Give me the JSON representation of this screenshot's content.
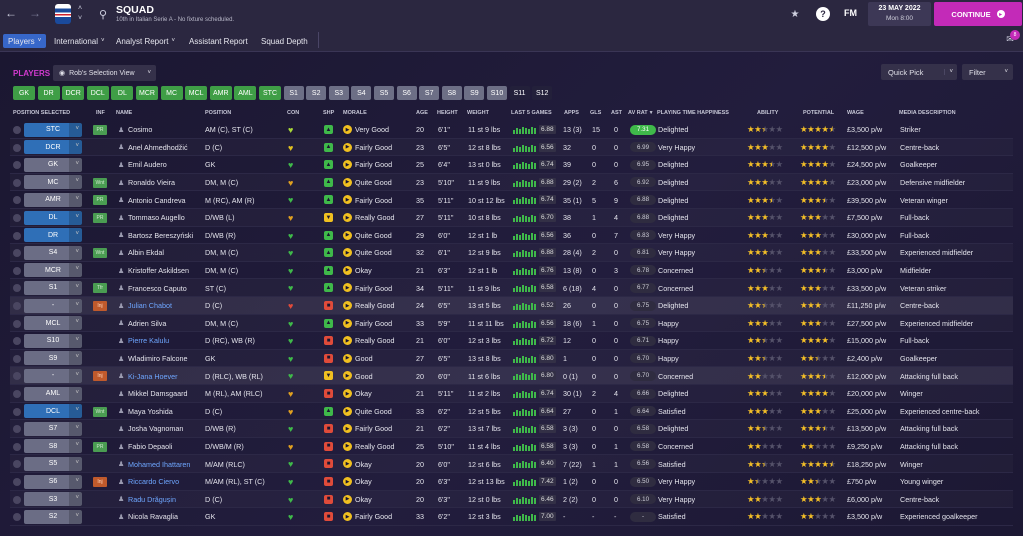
{
  "topbar": {
    "title": "SQUAD",
    "subtitle": "10th in Italian Serie A - No fixture scheduled.",
    "date": "23 MAY 2022",
    "time": "Mon 8:00",
    "fm_label": "FM",
    "continue_label": "CONTINUE",
    "notification_count": "8"
  },
  "nav": {
    "tabs": [
      {
        "label": "Players"
      },
      {
        "label": "International"
      },
      {
        "label": "Analyst Report"
      },
      {
        "label": "Assistant Report"
      },
      {
        "label": "Squad Depth"
      }
    ]
  },
  "toolbar": {
    "section_label": "PLAYERS",
    "view_label": "Rob's Selection View",
    "quick_pick_label": "Quick Pick",
    "filter_label": "Filter",
    "position_filters": [
      "GK",
      "DR",
      "DCR",
      "DCL",
      "DL",
      "MCR",
      "MC",
      "MCL",
      "AMR",
      "AML",
      "STC",
      "S1",
      "S2",
      "S3",
      "S4",
      "S5",
      "S6",
      "S7",
      "S8",
      "S9",
      "S10",
      "S11",
      "S12"
    ]
  },
  "columns": [
    "POSITION SELECTED",
    "INF",
    "NAME",
    "POSITION",
    "CON",
    "SHP",
    "MORALE",
    "AGE",
    "HEIGHT",
    "WEIGHT",
    "LAST 5 GAMES",
    "APPS",
    "GLS",
    "AST",
    "AV RAT",
    "PLAYING TIME HAPPINESS",
    "ABILITY",
    "POTENTIAL",
    "WAGE",
    "MEDIA DESCRIPTION"
  ],
  "players": [
    {
      "sel": "STC",
      "blue": true,
      "inf": "PR",
      "name": "Cosimo",
      "pos": "AM (C), ST (C)",
      "morale": "Very Good",
      "age": "20",
      "height": "6'1\"",
      "weight": "11 st 9 lbs",
      "last5": "6.88",
      "apps": "13 (3)",
      "gls": "15",
      "ast": "0",
      "avrat": "7.31",
      "happy": "Delighted",
      "ability": 2.5,
      "potential": 4.5,
      "wage": "£3,500 p/w",
      "media": "Striker"
    },
    {
      "sel": "DCR",
      "blue": true,
      "inf": "",
      "name": "Anel Ahmedhodžić",
      "pos": "D (C)",
      "morale": "Fairly Good",
      "age": "23",
      "height": "6'5\"",
      "weight": "12 st 8 lbs",
      "last5": "6.56",
      "apps": "32",
      "gls": "0",
      "ast": "0",
      "avrat": "6.99",
      "happy": "Very Happy",
      "ability": 3,
      "potential": 4,
      "wage": "£12,500 p/w",
      "media": "Centre-back"
    },
    {
      "sel": "GK",
      "blue": false,
      "inf": "",
      "name": "Emil Audero",
      "pos": "GK",
      "morale": "Fairly Good",
      "age": "25",
      "height": "6'4\"",
      "weight": "13 st 0 lbs",
      "last5": "6.74",
      "apps": "39",
      "gls": "0",
      "ast": "0",
      "avrat": "6.95",
      "happy": "Delighted",
      "ability": 3.5,
      "potential": 4,
      "wage": "£24,500 p/w",
      "media": "Goalkeeper"
    },
    {
      "sel": "MC",
      "blue": false,
      "inf": "Wnt",
      "name": "Ronaldo Vieira",
      "pos": "DM, M (C)",
      "morale": "Quite Good",
      "age": "23",
      "height": "5'10\"",
      "weight": "11 st 9 lbs",
      "last5": "6.88",
      "apps": "29 (2)",
      "gls": "2",
      "ast": "6",
      "avrat": "6.92",
      "happy": "Delighted",
      "ability": 3,
      "potential": 4,
      "wage": "£23,000 p/w",
      "media": "Defensive midfielder"
    },
    {
      "sel": "AMR",
      "blue": false,
      "inf": "PR",
      "name": "Antonio Candreva",
      "pos": "M (RC), AM (R)",
      "morale": "Fairly Good",
      "age": "35",
      "height": "5'11\"",
      "weight": "10 st 12 lbs",
      "last5": "6.74",
      "apps": "35 (1)",
      "gls": "5",
      "ast": "9",
      "avrat": "6.88",
      "happy": "Delighted",
      "ability": 3.5,
      "potential": 3.5,
      "wage": "£39,500 p/w",
      "media": "Veteran winger"
    },
    {
      "sel": "DL",
      "blue": true,
      "inf": "PR",
      "name": "Tommaso Augello",
      "pos": "D/WB (L)",
      "morale": "Really Good",
      "age": "27",
      "height": "5'11\"",
      "weight": "10 st 8 lbs",
      "last5": "6.70",
      "apps": "38",
      "gls": "1",
      "ast": "4",
      "avrat": "6.88",
      "happy": "Delighted",
      "ability": 3,
      "potential": 3,
      "wage": "£7,500 p/w",
      "media": "Full-back"
    },
    {
      "sel": "DR",
      "blue": true,
      "inf": "",
      "name": "Bartosz Bereszyński",
      "pos": "D/WB (R)",
      "morale": "Quite Good",
      "age": "29",
      "height": "6'0\"",
      "weight": "12 st 1 lb",
      "last5": "6.56",
      "apps": "36",
      "gls": "0",
      "ast": "7",
      "avrat": "6.83",
      "happy": "Very Happy",
      "ability": 3,
      "potential": 3,
      "wage": "£30,000 p/w",
      "media": "Full-back"
    },
    {
      "sel": "S4",
      "blue": false,
      "inf": "Wnt",
      "name": "Albin Ekdal",
      "pos": "DM, M (C)",
      "morale": "Quite Good",
      "age": "32",
      "height": "6'1\"",
      "weight": "12 st 9 lbs",
      "last5": "6.88",
      "apps": "28 (4)",
      "gls": "2",
      "ast": "0",
      "avrat": "6.81",
      "happy": "Very Happy",
      "ability": 3,
      "potential": 3,
      "wage": "£33,500 p/w",
      "media": "Experienced midfielder"
    },
    {
      "sel": "MCR",
      "blue": false,
      "inf": "",
      "name": "Kristoffer Askildsen",
      "pos": "DM, M (C)",
      "morale": "Okay",
      "age": "21",
      "height": "6'3\"",
      "weight": "12 st 1 lb",
      "last5": "6.76",
      "apps": "13 (8)",
      "gls": "0",
      "ast": "3",
      "avrat": "6.78",
      "happy": "Concerned",
      "ability": 2.5,
      "potential": 3.5,
      "wage": "£3,000 p/w",
      "media": "Midfielder"
    },
    {
      "sel": "S1",
      "blue": false,
      "inf": "Tfr",
      "name": "Francesco Caputo",
      "pos": "ST (C)",
      "morale": "Fairly Good",
      "age": "34",
      "height": "5'11\"",
      "weight": "11 st 9 lbs",
      "last5": "6.58",
      "apps": "6 (18)",
      "gls": "4",
      "ast": "0",
      "avrat": "6.77",
      "happy": "Concerned",
      "ability": 3,
      "potential": 3,
      "wage": "£33,500 p/w",
      "media": "Veteran striker"
    },
    {
      "sel": "-",
      "blue": false,
      "inf": "Inj",
      "name": "Julian Chabot",
      "pos": "D (C)",
      "morale": "Really Good",
      "age": "24",
      "height": "6'5\"",
      "weight": "13 st 5 lbs",
      "last5": "6.52",
      "apps": "26",
      "gls": "0",
      "ast": "0",
      "avrat": "6.75",
      "happy": "Delighted",
      "ability": 2.5,
      "potential": 3,
      "wage": "£11,250 p/w",
      "media": "Centre-back"
    },
    {
      "sel": "MCL",
      "blue": false,
      "inf": "",
      "name": "Adrien Silva",
      "pos": "DM, M (C)",
      "morale": "Fairly Good",
      "age": "33",
      "height": "5'9\"",
      "weight": "11 st 11 lbs",
      "last5": "6.56",
      "apps": "18 (6)",
      "gls": "1",
      "ast": "0",
      "avrat": "6.75",
      "happy": "Happy",
      "ability": 3,
      "potential": 3,
      "wage": "£27,500 p/w",
      "media": "Experienced midfielder"
    },
    {
      "sel": "S10",
      "blue": false,
      "inf": "",
      "name": "Pierre Kalulu",
      "pos": "D (RC), WB (R)",
      "morale": "Really Good",
      "age": "21",
      "height": "6'0\"",
      "weight": "12 st 3 lbs",
      "last5": "6.72",
      "apps": "12",
      "gls": "0",
      "ast": "0",
      "avrat": "6.71",
      "happy": "Happy",
      "ability": 2.5,
      "potential": 4,
      "wage": "£15,000 p/w",
      "media": "Full-back"
    },
    {
      "sel": "S9",
      "blue": false,
      "inf": "",
      "name": "Wladimiro Falcone",
      "pos": "GK",
      "morale": "Good",
      "age": "27",
      "height": "6'5\"",
      "weight": "13 st 8 lbs",
      "last5": "6.80",
      "apps": "1",
      "gls": "0",
      "ast": "0",
      "avrat": "6.70",
      "happy": "Happy",
      "ability": 2.5,
      "potential": 2.5,
      "wage": "£2,400 p/w",
      "media": "Goalkeeper"
    },
    {
      "sel": "-",
      "blue": false,
      "inf": "Inj",
      "name": "Ki-Jana Hoever",
      "pos": "D (RLC), WB (RL)",
      "morale": "Good",
      "age": "20",
      "height": "6'0\"",
      "weight": "11 st 6 lbs",
      "last5": "6.80",
      "apps": "0 (1)",
      "gls": "0",
      "ast": "0",
      "avrat": "6.70",
      "happy": "Concerned",
      "ability": 2,
      "potential": 3.5,
      "wage": "£12,000 p/w",
      "media": "Attacking full back"
    },
    {
      "sel": "AML",
      "blue": false,
      "inf": "",
      "name": "Mikkel Damsgaard",
      "pos": "M (RL), AM (RLC)",
      "morale": "Okay",
      "age": "21",
      "height": "5'11\"",
      "weight": "11 st 2 lbs",
      "last5": "6.74",
      "apps": "30 (1)",
      "gls": "2",
      "ast": "4",
      "avrat": "6.66",
      "happy": "Delighted",
      "ability": 3,
      "potential": 4,
      "wage": "£20,000 p/w",
      "media": "Winger"
    },
    {
      "sel": "DCL",
      "blue": true,
      "inf": "Wnt",
      "name": "Maya Yoshida",
      "pos": "D (C)",
      "morale": "Quite Good",
      "age": "33",
      "height": "6'2\"",
      "weight": "12 st 5 lbs",
      "last5": "6.64",
      "apps": "27",
      "gls": "0",
      "ast": "1",
      "avrat": "6.64",
      "happy": "Satisfied",
      "ability": 3,
      "potential": 3,
      "wage": "£25,000 p/w",
      "media": "Experienced centre-back"
    },
    {
      "sel": "S7",
      "blue": false,
      "inf": "",
      "name": "Josha Vagnoman",
      "pos": "D/WB (R)",
      "morale": "Fairly Good",
      "age": "21",
      "height": "6'2\"",
      "weight": "13 st 7 lbs",
      "last5": "6.58",
      "apps": "3 (3)",
      "gls": "0",
      "ast": "0",
      "avrat": "6.58",
      "happy": "Delighted",
      "ability": 2.5,
      "potential": 3.5,
      "wage": "£13,500 p/w",
      "media": "Attacking full back"
    },
    {
      "sel": "S8",
      "blue": false,
      "inf": "PR",
      "name": "Fabio Depaoli",
      "pos": "D/WB/M (R)",
      "morale": "Really Good",
      "age": "25",
      "height": "5'10\"",
      "weight": "11 st 4 lbs",
      "last5": "6.58",
      "apps": "3 (3)",
      "gls": "0",
      "ast": "1",
      "avrat": "6.58",
      "happy": "Concerned",
      "ability": 2,
      "potential": 2,
      "wage": "£9,250 p/w",
      "media": "Attacking full back"
    },
    {
      "sel": "S5",
      "blue": false,
      "inf": "",
      "name": "Mohamed Ihattaren",
      "pos": "M/AM (RLC)",
      "morale": "Okay",
      "age": "20",
      "height": "6'0\"",
      "weight": "12 st 6 lbs",
      "last5": "6.40",
      "apps": "7 (22)",
      "gls": "1",
      "ast": "1",
      "avrat": "6.56",
      "happy": "Satisfied",
      "ability": 2.5,
      "potential": 4.5,
      "wage": "£18,250 p/w",
      "media": "Winger"
    },
    {
      "sel": "S6",
      "blue": false,
      "inf": "Inj",
      "name": "Riccardo Ciervo",
      "pos": "M/AM (RL), ST (C)",
      "morale": "Okay",
      "age": "20",
      "height": "6'3\"",
      "weight": "12 st 13 lbs",
      "last5": "7.42",
      "apps": "1 (2)",
      "gls": "0",
      "ast": "0",
      "avrat": "6.50",
      "happy": "Very Happy",
      "ability": 1.5,
      "potential": 2.5,
      "wage": "£750 p/w",
      "media": "Young winger"
    },
    {
      "sel": "S3",
      "blue": false,
      "inf": "",
      "name": "Radu Drăgușin",
      "pos": "D (C)",
      "morale": "Okay",
      "age": "20",
      "height": "6'3\"",
      "weight": "12 st 0 lbs",
      "last5": "6.46",
      "apps": "2 (2)",
      "gls": "0",
      "ast": "0",
      "avrat": "6.10",
      "happy": "Very Happy",
      "ability": 2,
      "potential": 3,
      "wage": "£6,000 p/w",
      "media": "Centre-back"
    },
    {
      "sel": "S2",
      "blue": false,
      "inf": "",
      "name": "Nicola Ravaglia",
      "pos": "GK",
      "morale": "Fairly Good",
      "age": "33",
      "height": "6'2\"",
      "weight": "12 st 3 lbs",
      "last5": "7.00",
      "apps": "-",
      "gls": "-",
      "ast": "-",
      "avrat": "-",
      "happy": "Satisfied",
      "ability": 2,
      "potential": 2,
      "wage": "£3,500 p/w",
      "media": "Experienced goalkeeper"
    }
  ]
}
